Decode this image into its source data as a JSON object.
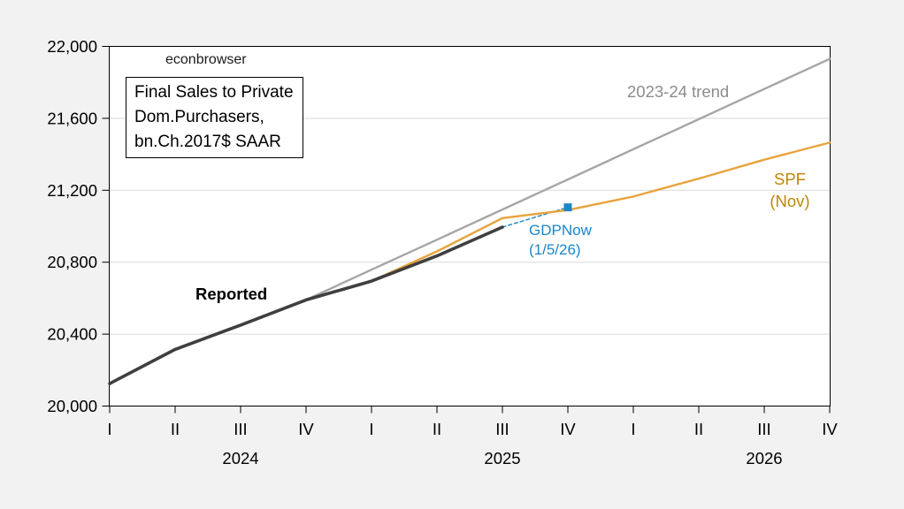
{
  "watermark": "econbrowser",
  "info_box": {
    "lines": [
      "Final Sales to Private",
      "Dom.Purchasers,",
      "bn.Ch.2017$ SAAR"
    ]
  },
  "labels": {
    "reported": "Reported",
    "trend": "2023-24 trend",
    "spf_line1": "SPF",
    "spf_line2": "(Nov)",
    "gdpnow_line1": "GDPNow",
    "gdpnow_line2": "(1/5/26)"
  },
  "colors": {
    "page_bg": "#f2f2f2",
    "plot_bg": "#ffffff",
    "grid": "#d9d9d9",
    "axis": "#000000",
    "text": "#000000",
    "trend_label": "#8c8c8c",
    "spf_label": "#bf8606",
    "gdpnow_label": "#1d86c8"
  },
  "chart_data": {
    "type": "line",
    "title": "Final Sales to Private Dom.Purchasers, bn.Ch.2017$ SAAR",
    "x_categories": [
      "2024Q1",
      "2024Q2",
      "2024Q3",
      "2024Q4",
      "2025Q1",
      "2025Q2",
      "2025Q3",
      "2025Q4",
      "2026Q1",
      "2026Q2",
      "2026Q3",
      "2026Q4"
    ],
    "x_tick_labels": [
      "I",
      "II",
      "III",
      "IV",
      "I",
      "II",
      "III",
      "IV",
      "I",
      "II",
      "III",
      "IV"
    ],
    "year_labels": [
      {
        "text": "2024",
        "index": 2
      },
      {
        "text": "2025",
        "index": 6
      },
      {
        "text": "2026",
        "index": 10
      }
    ],
    "ylim": [
      20000,
      22000
    ],
    "y_ticks": [
      20000,
      20400,
      20800,
      21200,
      21600,
      22000
    ],
    "y_tick_labels": [
      "20,000",
      "20,400",
      "20,800",
      "21,200",
      "21,600",
      "22,000"
    ],
    "grid": "horizontal",
    "legend": "labels-on-chart",
    "series": [
      {
        "name": "Reported",
        "color": "#3f3f3f",
        "start_index": 0,
        "values": [
          20125,
          20315,
          20450,
          20590,
          20695,
          20835,
          20995
        ]
      },
      {
        "name": "2023-24 trend",
        "color": "#a6a6a6",
        "start_index": 3,
        "values": [
          20590,
          20758,
          20925,
          21093,
          21260,
          21428,
          21595,
          21763,
          21930
        ]
      },
      {
        "name": "SPF (Nov)",
        "color": "#e8a33c",
        "start_index": 4,
        "values": [
          20695,
          20860,
          21045,
          21090,
          21165,
          21265,
          21370,
          21465
        ]
      },
      {
        "name": "GDPNow (1/5/26)",
        "color": "#1d86c8",
        "start_index": 6,
        "values": [
          20995,
          21105
        ],
        "dashed": true,
        "marker_end": "square"
      }
    ]
  }
}
